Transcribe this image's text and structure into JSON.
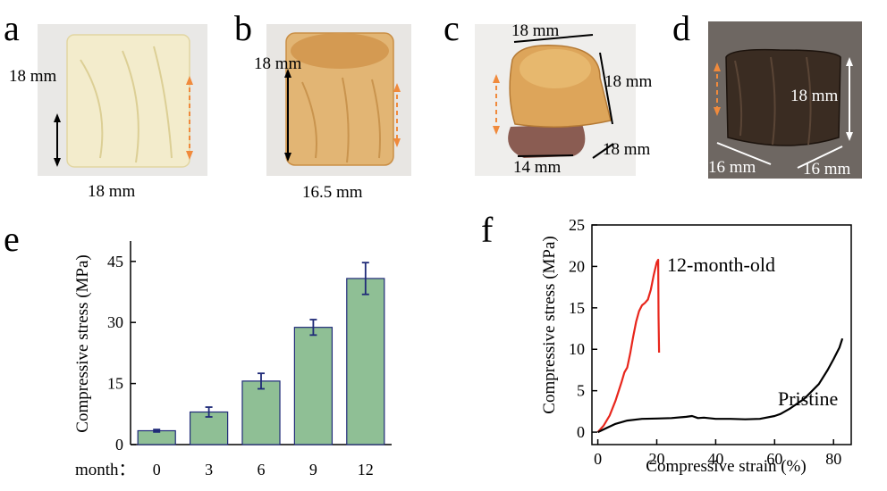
{
  "panels": {
    "a": {
      "label": "a",
      "dims": [
        "18 mm",
        "18 mm"
      ],
      "colors": {
        "background": "#e9e8e6",
        "sample": "#f3eccc",
        "arrow_dashed": "#f08a3c"
      }
    },
    "b": {
      "label": "b",
      "dims": [
        "18 mm",
        "16.5 mm"
      ],
      "colors": {
        "background": "#e8e6e3",
        "sample": "#e2b574",
        "arrow_dashed": "#f08a3c"
      }
    },
    "c": {
      "label": "c",
      "dims": [
        "18 mm",
        "18 mm",
        "18 mm",
        "14 mm"
      ],
      "colors": {
        "background": "#efeeec",
        "sample": "#dda55a",
        "base": "#8a5c52",
        "arrow_dashed": "#f08a3c"
      }
    },
    "d": {
      "label": "d",
      "dims": [
        "18 mm",
        "16 mm",
        "16 mm"
      ],
      "colors": {
        "background": "#6e6762",
        "sample": "#3a2c22",
        "arrow_dashed": "#f08a3c",
        "arrow": "#ffffff"
      }
    },
    "e": {
      "label": "e"
    },
    "f": {
      "label": "f"
    }
  },
  "chart_data": [
    {
      "type": "bar",
      "panel": "e",
      "xlabel": "month：",
      "ylabel": "Compressive stress (MPa)",
      "categories": [
        "0",
        "3",
        "6",
        "9",
        "12"
      ],
      "values": [
        3.4,
        8.0,
        15.6,
        28.8,
        40.8
      ],
      "errors": [
        0.3,
        1.2,
        1.9,
        1.9,
        3.9
      ],
      "ylim": [
        0,
        50
      ],
      "yticks": [
        "0",
        "15",
        "30",
        "45"
      ],
      "grid": false,
      "colors": {
        "bar": "#8fbf95",
        "edge": "#1f2a78",
        "error": "#1f2a78"
      }
    },
    {
      "type": "line",
      "panel": "f",
      "xlabel": "Compressive strain (%)",
      "ylabel": "Compressive stress (MPa)",
      "xlim": [
        -2,
        86
      ],
      "ylim": [
        -1.5,
        25
      ],
      "xticks": [
        "0",
        "20",
        "40",
        "60",
        "80"
      ],
      "yticks": [
        "0",
        "5",
        "10",
        "15",
        "20",
        "25"
      ],
      "grid": false,
      "series": [
        {
          "name": "12-month-old",
          "color": "#e8261c",
          "x": [
            0,
            2,
            4,
            6,
            8,
            9,
            10,
            11,
            12,
            13,
            14,
            15,
            16,
            17,
            18,
            19,
            20,
            20.5,
            20.6,
            20.8
          ],
          "y": [
            0,
            0.8,
            2.0,
            3.8,
            6.0,
            7.2,
            7.8,
            9.5,
            11.5,
            13.3,
            14.6,
            15.3,
            15.6,
            16.0,
            17.2,
            19.0,
            20.5,
            20.8,
            14.0,
            9.6
          ]
        },
        {
          "name": "Pristine",
          "color": "#000000",
          "x": [
            0,
            3,
            6,
            10,
            15,
            20,
            25,
            30,
            32,
            34,
            36,
            40,
            45,
            50,
            55,
            60,
            62,
            65,
            70,
            75,
            78,
            80,
            82,
            83
          ],
          "y": [
            0,
            0.5,
            1.0,
            1.4,
            1.6,
            1.65,
            1.7,
            1.85,
            1.95,
            1.7,
            1.75,
            1.6,
            1.6,
            1.55,
            1.6,
            1.95,
            2.2,
            2.8,
            4.0,
            5.8,
            7.5,
            8.8,
            10.2,
            11.3
          ]
        }
      ],
      "annotations": [
        "12-month-old",
        "Pristine"
      ]
    }
  ]
}
